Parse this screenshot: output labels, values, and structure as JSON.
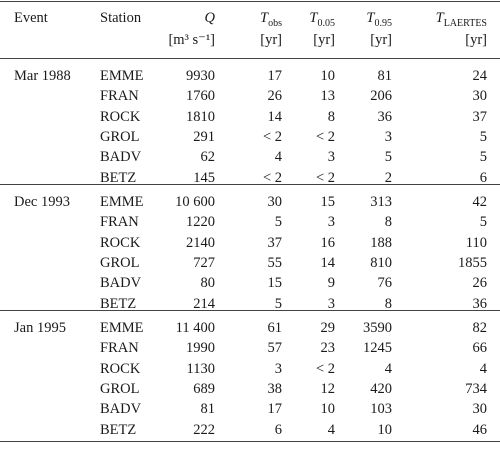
{
  "header": {
    "event": "Event",
    "station": "Station",
    "columns": [
      {
        "symbol": "Q",
        "subscript": "",
        "unit": "[m³ s⁻¹]"
      },
      {
        "symbol": "T",
        "subscript": "obs",
        "unit": "[yr]"
      },
      {
        "symbol": "T",
        "subscript": "0.05",
        "unit": "[yr]"
      },
      {
        "symbol": "T",
        "subscript": "0.95",
        "unit": "[yr]"
      },
      {
        "symbol": "T",
        "subscript": "LAERTES",
        "unit": "[yr]"
      }
    ]
  },
  "table": {
    "groups": [
      {
        "event": "Mar 1988",
        "rows": [
          [
            "EMME",
            "9930",
            "17",
            "10",
            "81",
            "24"
          ],
          [
            "FRAN",
            "1760",
            "26",
            "13",
            "206",
            "30"
          ],
          [
            "ROCK",
            "1810",
            "14",
            "8",
            "36",
            "37"
          ],
          [
            "GROL",
            "291",
            "< 2",
            "< 2",
            "3",
            "5"
          ],
          [
            "BADV",
            "62",
            "4",
            "3",
            "5",
            "5"
          ],
          [
            "BETZ",
            "145",
            "< 2",
            "< 2",
            "2",
            "6"
          ]
        ]
      },
      {
        "event": "Dec 1993",
        "rows": [
          [
            "EMME",
            "10 600",
            "30",
            "15",
            "313",
            "42"
          ],
          [
            "FRAN",
            "1220",
            "5",
            "3",
            "8",
            "5"
          ],
          [
            "ROCK",
            "2140",
            "37",
            "16",
            "188",
            "110"
          ],
          [
            "GROL",
            "727",
            "55",
            "14",
            "810",
            "1855"
          ],
          [
            "BADV",
            "80",
            "15",
            "9",
            "76",
            "26"
          ],
          [
            "BETZ",
            "214",
            "5",
            "3",
            "8",
            "36"
          ]
        ]
      },
      {
        "event": "Jan 1995",
        "rows": [
          [
            "EMME",
            "11 400",
            "61",
            "29",
            "3590",
            "82"
          ],
          [
            "FRAN",
            "1990",
            "57",
            "23",
            "1245",
            "66"
          ],
          [
            "ROCK",
            "1130",
            "3",
            "< 2",
            "4",
            "4"
          ],
          [
            "GROL",
            "689",
            "38",
            "12",
            "420",
            "734"
          ],
          [
            "BADV",
            "81",
            "17",
            "10",
            "103",
            "30"
          ],
          [
            "BETZ",
            "222",
            "6",
            "4",
            "10",
            "46"
          ]
        ]
      }
    ]
  }
}
